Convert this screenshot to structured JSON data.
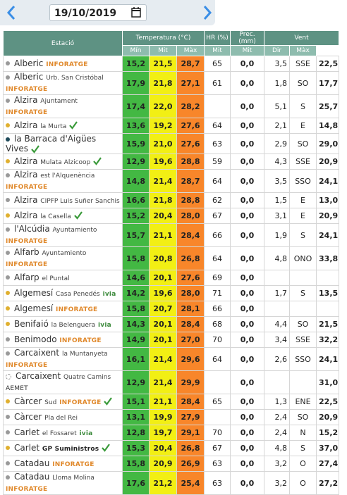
{
  "date": "19/10/2019",
  "header": {
    "station": "Estació",
    "temperature": "Temperatura (°C)",
    "humidity": "HR (%)",
    "precipitation": "Prec. (mm)",
    "wind": "Vent",
    "sub": [
      "Mín",
      "Mit",
      "Màx",
      "Mit",
      "Mit",
      "Dir",
      "Màx"
    ]
  },
  "rows": [
    {
      "station": "Alberic",
      "detail": null,
      "tag": "INFORATGE",
      "check": false,
      "dot": "#9a9a9a",
      "cells": [
        "15,2",
        "21,5",
        "28,7",
        "65",
        "0,0",
        "3,5",
        "SSE",
        "22,5"
      ]
    },
    {
      "station": "Alberic",
      "detail": "Urb. San Cristóbal",
      "tag": "INFORATGE",
      "check": false,
      "dot": "#9a9a9a",
      "cells": [
        "17,9",
        "21,8",
        "27,1",
        "61",
        "0,0",
        "1,8",
        "SO",
        "17,7"
      ]
    },
    {
      "station": "Alzira",
      "detail": "Ajuntament",
      "tag": "INFORATGE",
      "check": false,
      "dot": "#9a9a9a",
      "cells": [
        "17,4",
        "22,0",
        "28,2",
        null,
        "0,0",
        "5,1",
        "S",
        "25,7"
      ]
    },
    {
      "station": "Alzira",
      "detail": "la Murta",
      "tag": null,
      "check": true,
      "dot": "#e0b030",
      "cells": [
        "13,6",
        "19,2",
        "27,6",
        "64",
        "0,0",
        "2,1",
        "E",
        "14,8"
      ]
    },
    {
      "station": "la Barraca d'Aigües Vives",
      "detail": null,
      "tag": null,
      "check": true,
      "dot": "#1f4a5a",
      "cells": [
        "15,9",
        "21,0",
        "27,6",
        "63",
        "0,0",
        "2,9",
        "SO",
        "29,0"
      ]
    },
    {
      "station": "Alzira",
      "detail": "Mulata Alzicoop",
      "tag": null,
      "check": true,
      "dot": "#e0b030",
      "cells": [
        "12,9",
        "19,6",
        "28,8",
        "59",
        "0,0",
        "4,3",
        "SSE",
        "20,9"
      ]
    },
    {
      "station": "Alzira",
      "detail": "est l'Alquenència",
      "tag": "INFORATGE",
      "check": false,
      "dot": "#9a9a9a",
      "cells": [
        "14,8",
        "21,4",
        "28,7",
        "64",
        "0,0",
        "3,5",
        "SSO",
        "24,1"
      ]
    },
    {
      "station": "Alzira",
      "detail": "CIPFP Luis Suñer Sanchis",
      "tag": null,
      "check": false,
      "dot": "#9a9a9a",
      "cells": [
        "16,6",
        "21,8",
        "28,8",
        "62",
        "0,0",
        "1,5",
        "E",
        "13,0"
      ]
    },
    {
      "station": "Alzira",
      "detail": "la Casella",
      "tag": null,
      "check": true,
      "dot": "#e0b030",
      "cells": [
        "15,2",
        "20,4",
        "28,0",
        "67",
        "0,0",
        "3,1",
        "E",
        "20,9"
      ]
    },
    {
      "station": "l'Alcúdia",
      "detail": "Ayuntamiento",
      "tag": "INFORATGE",
      "check": false,
      "dot": "#9a9a9a",
      "cells": [
        "15,7",
        "21,1",
        "28,4",
        "66",
        "0,0",
        "1,9",
        "S",
        "24,1"
      ]
    },
    {
      "station": "Alfarb",
      "detail": "Ayuntamiento",
      "tag": "INFORATGE",
      "check": false,
      "dot": "#9a9a9a",
      "cells": [
        "15,8",
        "20,8",
        "26,8",
        "64",
        "0,0",
        "4,8",
        "ONO",
        "33,8"
      ]
    },
    {
      "station": "Alfarp",
      "detail": "el Puntal",
      "tag": null,
      "check": false,
      "dot": "#9a9a9a",
      "cells": [
        "14,6",
        "20,1",
        "27,6",
        "69",
        "0,0",
        null,
        null,
        null
      ]
    },
    {
      "station": "Algemesí",
      "detail": "Casa Penedés",
      "tag": "ivia",
      "check": false,
      "dot": "#e0b030",
      "cells": [
        "14,2",
        "19,6",
        "28,0",
        "71",
        "0,0",
        "1,7",
        "S",
        "13,5"
      ]
    },
    {
      "station": "Algemesí",
      "detail": null,
      "tag": "INFORATGE",
      "check": false,
      "dot": "#e0b030",
      "cells": [
        "15,8",
        "20,7",
        "28,1",
        "66",
        "0,0",
        null,
        null,
        null
      ]
    },
    {
      "station": "Benifaió",
      "detail": "la Belenguera",
      "tag": "ivia",
      "check": false,
      "dot": "#e0b030",
      "cells": [
        "14,3",
        "20,1",
        "28,4",
        "68",
        "0,0",
        "4,4",
        "SO",
        "21,5"
      ]
    },
    {
      "station": "Benimodo",
      "detail": null,
      "tag": "INFORATGE",
      "check": false,
      "dot": "#9a9a9a",
      "cells": [
        "14,9",
        "20,1",
        "27,0",
        "70",
        "0,0",
        "3,4",
        "SSE",
        "32,2"
      ]
    },
    {
      "station": "Carcaixent",
      "detail": "la Muntanyeta",
      "tag": "INFORATGE",
      "check": false,
      "dot": "#9a9a9a",
      "cells": [
        "16,1",
        "21,4",
        "29,6",
        "64",
        "0,0",
        "2,6",
        "SSO",
        "24,1"
      ]
    },
    {
      "station": "Carcaixent",
      "detail": "Quatre Camins",
      "tag": "AEMET",
      "check": false,
      "dot": "#ffffff",
      "cells": [
        "12,9",
        "21,4",
        "29,9",
        null,
        "0,0",
        null,
        null,
        "31,0"
      ]
    },
    {
      "station": "Càrcer",
      "detail": "Sud",
      "tag": "INFORATGE",
      "check": true,
      "dot": "#e0b030",
      "cells": [
        "15,1",
        "21,1",
        "28,4",
        "65",
        "0,0",
        "1,3",
        "ENE",
        "22,5"
      ]
    },
    {
      "station": "Càrcer",
      "detail": "Pla del Rei",
      "tag": null,
      "check": false,
      "dot": "#9a9a9a",
      "cells": [
        "13,1",
        "19,9",
        "27,9",
        null,
        "0,0",
        "2,4",
        "SO",
        "20,9"
      ]
    },
    {
      "station": "Carlet",
      "detail": "el Fossaret",
      "tag": "ivia",
      "check": false,
      "dot": "#9a9a9a",
      "cells": [
        "12,8",
        "19,7",
        "29,1",
        "70",
        "0,0",
        "2,4",
        "N",
        "15,2"
      ]
    },
    {
      "station": "Carlet",
      "detail": null,
      "tag": "GP Suministros",
      "check": true,
      "dot": "#e0b030",
      "cells": [
        "15,3",
        "20,4",
        "26,8",
        "67",
        "0,0",
        "4,8",
        "S",
        "37,0"
      ]
    },
    {
      "station": "Catadau",
      "detail": null,
      "tag": "INFORATGE",
      "check": false,
      "dot": "#9a9a9a",
      "cells": [
        "15,8",
        "20,9",
        "26,9",
        "63",
        "0,0",
        "3,2",
        "O",
        "27,4"
      ]
    },
    {
      "station": "Catadau",
      "detail": "Lloma Molina",
      "tag": "INFORATGE",
      "check": false,
      "dot": "#9a9a9a",
      "cells": [
        "17,6",
        "21,2",
        "25,4",
        "63",
        "0,0",
        "3,2",
        "O",
        "27,2"
      ]
    }
  ]
}
